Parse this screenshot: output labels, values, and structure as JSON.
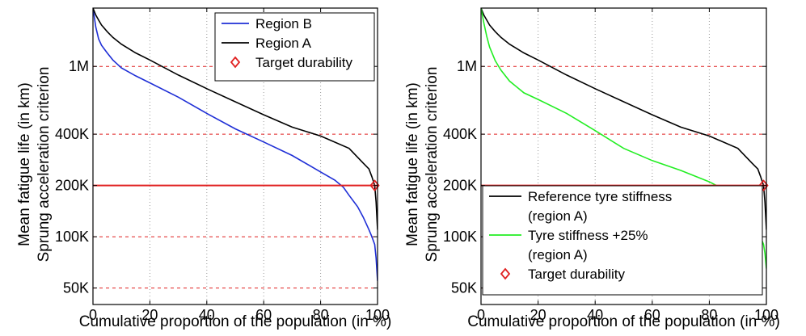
{
  "chart_data": [
    {
      "type": "line",
      "xlabel": "Cumulative proportion of the population (in %)",
      "ylabel": [
        "Mean fatigue life (in km)",
        "Sprung acceleration criterion"
      ],
      "xlim": [
        0,
        100
      ],
      "ylim": [
        40000,
        2200000
      ],
      "yscale": "log",
      "x_ticks": [
        0,
        20,
        40,
        60,
        80,
        100
      ],
      "x_tick_labels": [
        "0",
        "20",
        "40",
        "60",
        "80",
        "100"
      ],
      "y_ticks": [
        50000,
        100000,
        200000,
        400000,
        1000000
      ],
      "y_tick_labels": [
        "50K",
        "100K",
        "200K",
        "400K",
        "1M"
      ],
      "grid": {
        "x": "dotted",
        "y": "dashed red"
      },
      "target_line": {
        "y": 200000,
        "color": "#e02020"
      },
      "target_marker": {
        "x": 99,
        "y": 200000,
        "label": "Target durability",
        "marker": "diamond"
      },
      "legend_position": "top-right",
      "series": [
        {
          "name": "Region B",
          "color": "#1f2fd6",
          "x": [
            0,
            1,
            2,
            3,
            5,
            7,
            10,
            15,
            20,
            30,
            40,
            50,
            60,
            70,
            80,
            85,
            88,
            90,
            93,
            95,
            97,
            98,
            99,
            99.5,
            100
          ],
          "y": [
            2200000,
            1700000,
            1450000,
            1330000,
            1200000,
            1090000,
            980000,
            880000,
            800000,
            660000,
            530000,
            430000,
            360000,
            300000,
            240000,
            215000,
            195000,
            175000,
            150000,
            130000,
            110000,
            100000,
            90000,
            75000,
            55000
          ]
        },
        {
          "name": "Region A",
          "color": "#000000",
          "x": [
            0,
            1,
            2,
            3,
            5,
            7,
            10,
            15,
            20,
            30,
            40,
            50,
            60,
            70,
            80,
            90,
            95,
            97,
            98,
            99,
            99.5,
            100
          ],
          "y": [
            2200000,
            2000000,
            1870000,
            1750000,
            1600000,
            1480000,
            1350000,
            1200000,
            1090000,
            890000,
            740000,
            620000,
            520000,
            440000,
            390000,
            330000,
            270000,
            250000,
            225000,
            200000,
            160000,
            110000
          ]
        }
      ],
      "legend": [
        {
          "label": "Region B",
          "style": "line",
          "color": "#1f2fd6"
        },
        {
          "label": "Region A",
          "style": "line",
          "color": "#000000"
        },
        {
          "label": "Target durability",
          "style": "diamond",
          "color": "#e02020"
        }
      ]
    },
    {
      "type": "line",
      "xlabel": "Cumulative proportion of the population (in %)",
      "ylabel": [
        "Mean fatigue life (in km)",
        "Sprung acceleration criterion"
      ],
      "xlim": [
        0,
        100
      ],
      "ylim": [
        40000,
        2200000
      ],
      "yscale": "log",
      "x_ticks": [
        0,
        20,
        40,
        60,
        80,
        100
      ],
      "x_tick_labels": [
        "0",
        "20",
        "40",
        "60",
        "80",
        "100"
      ],
      "y_ticks": [
        50000,
        100000,
        200000,
        400000,
        1000000
      ],
      "y_tick_labels": [
        "50K",
        "100K",
        "200K",
        "400K",
        "1M"
      ],
      "grid": {
        "x": "dotted",
        "y": "dashed red"
      },
      "target_line": {
        "y": 200000,
        "color": "#e02020"
      },
      "target_marker": {
        "x": 99,
        "y": 200000,
        "label": "Target durability",
        "marker": "diamond"
      },
      "legend_position": "bottom-right",
      "series": [
        {
          "name": "Reference tyre stiffness (region A)",
          "color": "#000000",
          "x": [
            0,
            1,
            2,
            3,
            5,
            7,
            10,
            15,
            20,
            30,
            40,
            50,
            60,
            70,
            80,
            90,
            95,
            97,
            98,
            99,
            99.5,
            100
          ],
          "y": [
            2200000,
            2000000,
            1870000,
            1750000,
            1600000,
            1480000,
            1350000,
            1200000,
            1090000,
            890000,
            740000,
            620000,
            520000,
            440000,
            390000,
            330000,
            270000,
            250000,
            225000,
            200000,
            160000,
            110000
          ]
        },
        {
          "name": "Tyre stiffness +25% (region A)",
          "color": "#22ee22",
          "x": [
            0,
            1,
            2,
            3,
            5,
            7,
            10,
            15,
            20,
            30,
            40,
            50,
            60,
            70,
            80,
            85,
            90,
            93,
            95,
            97,
            98,
            99,
            99.5,
            100
          ],
          "y": [
            2200000,
            1800000,
            1500000,
            1300000,
            1080000,
            950000,
            820000,
            700000,
            640000,
            530000,
            420000,
            330000,
            280000,
            245000,
            210000,
            190000,
            165000,
            145000,
            130000,
            115000,
            100000,
            90000,
            80000,
            65000
          ]
        }
      ],
      "legend": [
        {
          "label": "Reference tyre stiffness",
          "label2": "(region A)",
          "style": "line",
          "color": "#000000"
        },
        {
          "label": "Tyre stiffness +25%",
          "label2": "(region A)",
          "style": "line",
          "color": "#22ee22"
        },
        {
          "label": "Target durability",
          "style": "diamond",
          "color": "#e02020"
        }
      ]
    }
  ]
}
